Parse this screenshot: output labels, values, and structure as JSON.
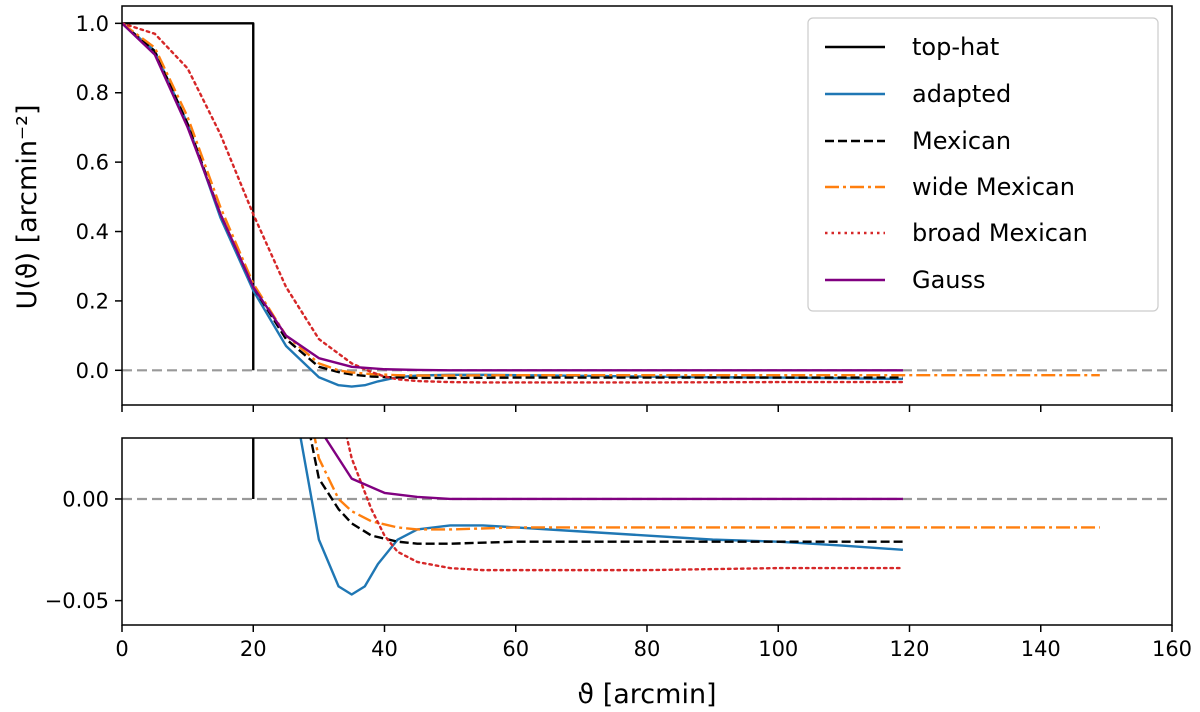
{
  "chart_data": [
    {
      "type": "line",
      "panel": "top",
      "ylabel": "U(ϑ) [arcmin⁻²]",
      "xlim": [
        0,
        160
      ],
      "ylim": [
        -0.1,
        1.05
      ],
      "xticks": [
        0,
        20,
        40,
        60,
        80,
        100,
        120,
        140,
        160
      ],
      "yticks": [
        0.0,
        0.2,
        0.4,
        0.6,
        0.8,
        1.0
      ],
      "ytick_labels": [
        "0.0",
        "0.2",
        "0.4",
        "0.6",
        "0.8",
        "1.0"
      ],
      "xtick_labels_shown": false,
      "reference_line": {
        "y": 0,
        "style": "dashed",
        "color": "#999999"
      },
      "legend": {
        "position": "top-right",
        "entries": [
          "top-hat",
          "adapted",
          "Mexican",
          "wide Mexican",
          "broad Mexican",
          "Gauss"
        ]
      },
      "series": [
        {
          "name": "top-hat",
          "color": "#000000",
          "dash": "solid",
          "x": [
            0,
            20,
            20
          ],
          "y": [
            1.0,
            1.0,
            0.0
          ]
        },
        {
          "name": "adapted",
          "color": "#1f77b4",
          "dash": "solid",
          "x": [
            0,
            5,
            10,
            15,
            20,
            25,
            30,
            33,
            35,
            37,
            39,
            42,
            45,
            50,
            55,
            60,
            70,
            80,
            90,
            100,
            110,
            119
          ],
          "y": [
            1.0,
            0.92,
            0.71,
            0.44,
            0.23,
            0.07,
            -0.02,
            -0.043,
            -0.047,
            -0.043,
            -0.032,
            -0.02,
            -0.015,
            -0.013,
            -0.013,
            -0.014,
            -0.016,
            -0.018,
            -0.02,
            -0.021,
            -0.023,
            -0.025
          ]
        },
        {
          "name": "Mexican",
          "color": "#000000",
          "dash": "dashed",
          "x": [
            0,
            5,
            10,
            15,
            20,
            25,
            30,
            33,
            35,
            38,
            42,
            45,
            50,
            60,
            80,
            100,
            119
          ],
          "y": [
            1.0,
            0.92,
            0.71,
            0.45,
            0.24,
            0.09,
            0.01,
            -0.005,
            -0.012,
            -0.018,
            -0.021,
            -0.022,
            -0.022,
            -0.021,
            -0.021,
            -0.021,
            -0.021
          ]
        },
        {
          "name": "wide Mexican",
          "color": "#ff7f0e",
          "dash": "dashdot",
          "x": [
            0,
            5,
            10,
            15,
            20,
            25,
            30,
            33,
            35,
            38,
            42,
            45,
            50,
            60,
            80,
            100,
            120,
            149
          ],
          "y": [
            1.0,
            0.93,
            0.73,
            0.47,
            0.25,
            0.1,
            0.02,
            0.0,
            -0.006,
            -0.011,
            -0.014,
            -0.015,
            -0.015,
            -0.014,
            -0.014,
            -0.014,
            -0.014,
            -0.014
          ]
        },
        {
          "name": "broad Mexican",
          "color": "#d62728",
          "dash": "dotted",
          "x": [
            0,
            5,
            10,
            15,
            20,
            25,
            30,
            35,
            38,
            40,
            42,
            45,
            50,
            55,
            60,
            80,
            100,
            119
          ],
          "y": [
            1.0,
            0.97,
            0.87,
            0.68,
            0.45,
            0.24,
            0.09,
            0.02,
            -0.005,
            -0.018,
            -0.026,
            -0.031,
            -0.034,
            -0.035,
            -0.035,
            -0.035,
            -0.034,
            -0.034
          ]
        },
        {
          "name": "Gauss",
          "color": "#800080",
          "dash": "solid",
          "x": [
            0,
            5,
            10,
            15,
            20,
            25,
            30,
            35,
            40,
            45,
            50,
            60,
            80,
            100,
            119
          ],
          "y": [
            1.0,
            0.91,
            0.7,
            0.45,
            0.24,
            0.1,
            0.035,
            0.01,
            0.003,
            0.001,
            0.0,
            0.0,
            0.0,
            0.0,
            0.0
          ]
        }
      ]
    },
    {
      "type": "line",
      "panel": "bottom",
      "xlabel": "ϑ [arcmin]",
      "xlim": [
        0,
        160
      ],
      "ylim": [
        -0.062,
        0.03
      ],
      "xticks": [
        0,
        20,
        40,
        60,
        80,
        100,
        120,
        140,
        160
      ],
      "xtick_labels": [
        "0",
        "20",
        "40",
        "60",
        "80",
        "100",
        "120",
        "140",
        "160"
      ],
      "yticks": [
        -0.05,
        0.0
      ],
      "ytick_labels": [
        "−0.05",
        "0.00"
      ],
      "reference_line": {
        "y": 0,
        "style": "dashed",
        "color": "#999999"
      },
      "series_same_as_top": true
    }
  ]
}
